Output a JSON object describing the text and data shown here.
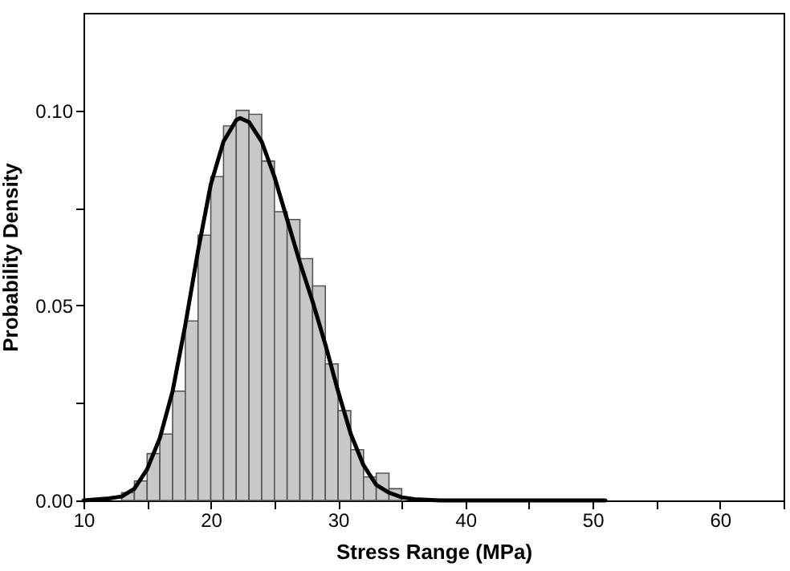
{
  "chart_data": {
    "type": "histogram",
    "xlabel": "Stress Range (MPa)",
    "ylabel": "Probability Density",
    "color": "#c8c8c8",
    "bins": [
      13,
      14,
      15,
      16,
      17,
      18,
      19,
      20,
      21,
      22,
      23,
      24,
      25,
      26,
      27,
      28,
      29,
      30,
      31,
      32,
      33,
      34,
      35,
      36,
      37,
      38
    ],
    "values": [
      0.002,
      0.005,
      0.012,
      0.017,
      0.028,
      0.046,
      0.068,
      0.083,
      0.096,
      0.1,
      0.099,
      0.087,
      0.074,
      0.072,
      0.062,
      0.055,
      0.035,
      0.023,
      0.013,
      0.006,
      0.007,
      0.003,
      null,
      null,
      null
    ],
    "series": [
      {
        "type": "line",
        "color": "#000000",
        "x": [
          10,
          12,
          13,
          14,
          15,
          16,
          17,
          18,
          19,
          20,
          21,
          22,
          22.3,
          23,
          24,
          25,
          26,
          27,
          28,
          29,
          30,
          31,
          32,
          33,
          34,
          35,
          36,
          38,
          45,
          51
        ],
        "values": [
          0,
          0.0005,
          0.001,
          0.003,
          0.008,
          0.016,
          0.028,
          0.045,
          0.064,
          0.081,
          0.092,
          0.0975,
          0.098,
          0.097,
          0.092,
          0.083,
          0.072,
          0.061,
          0.051,
          0.04,
          0.028,
          0.017,
          0.009,
          0.004,
          0.002,
          0.0008,
          0.0003,
          0,
          0,
          0
        ]
      }
    ],
    "xlim": [
      10,
      65
    ],
    "xticks": [
      10,
      {
        "value": 15,
        "label": null
      },
      20,
      {
        "value": 25,
        "label": null
      },
      30,
      {
        "value": 35,
        "label": null
      },
      40,
      {
        "value": 45,
        "label": null
      },
      50,
      {
        "value": 55,
        "label": null
      },
      60,
      {
        "value": 65,
        "label": null
      }
    ],
    "ylim": [
      0,
      0.125
    ],
    "yticks": [
      {
        "value": 0,
        "label": "0.00"
      },
      {
        "value": 0.025,
        "label": null
      },
      {
        "value": 0.05,
        "label": "0.05"
      },
      {
        "value": 0.075,
        "label": null
      },
      {
        "value": 0.1,
        "label": "0.10"
      }
    ],
    "grid": false
  }
}
